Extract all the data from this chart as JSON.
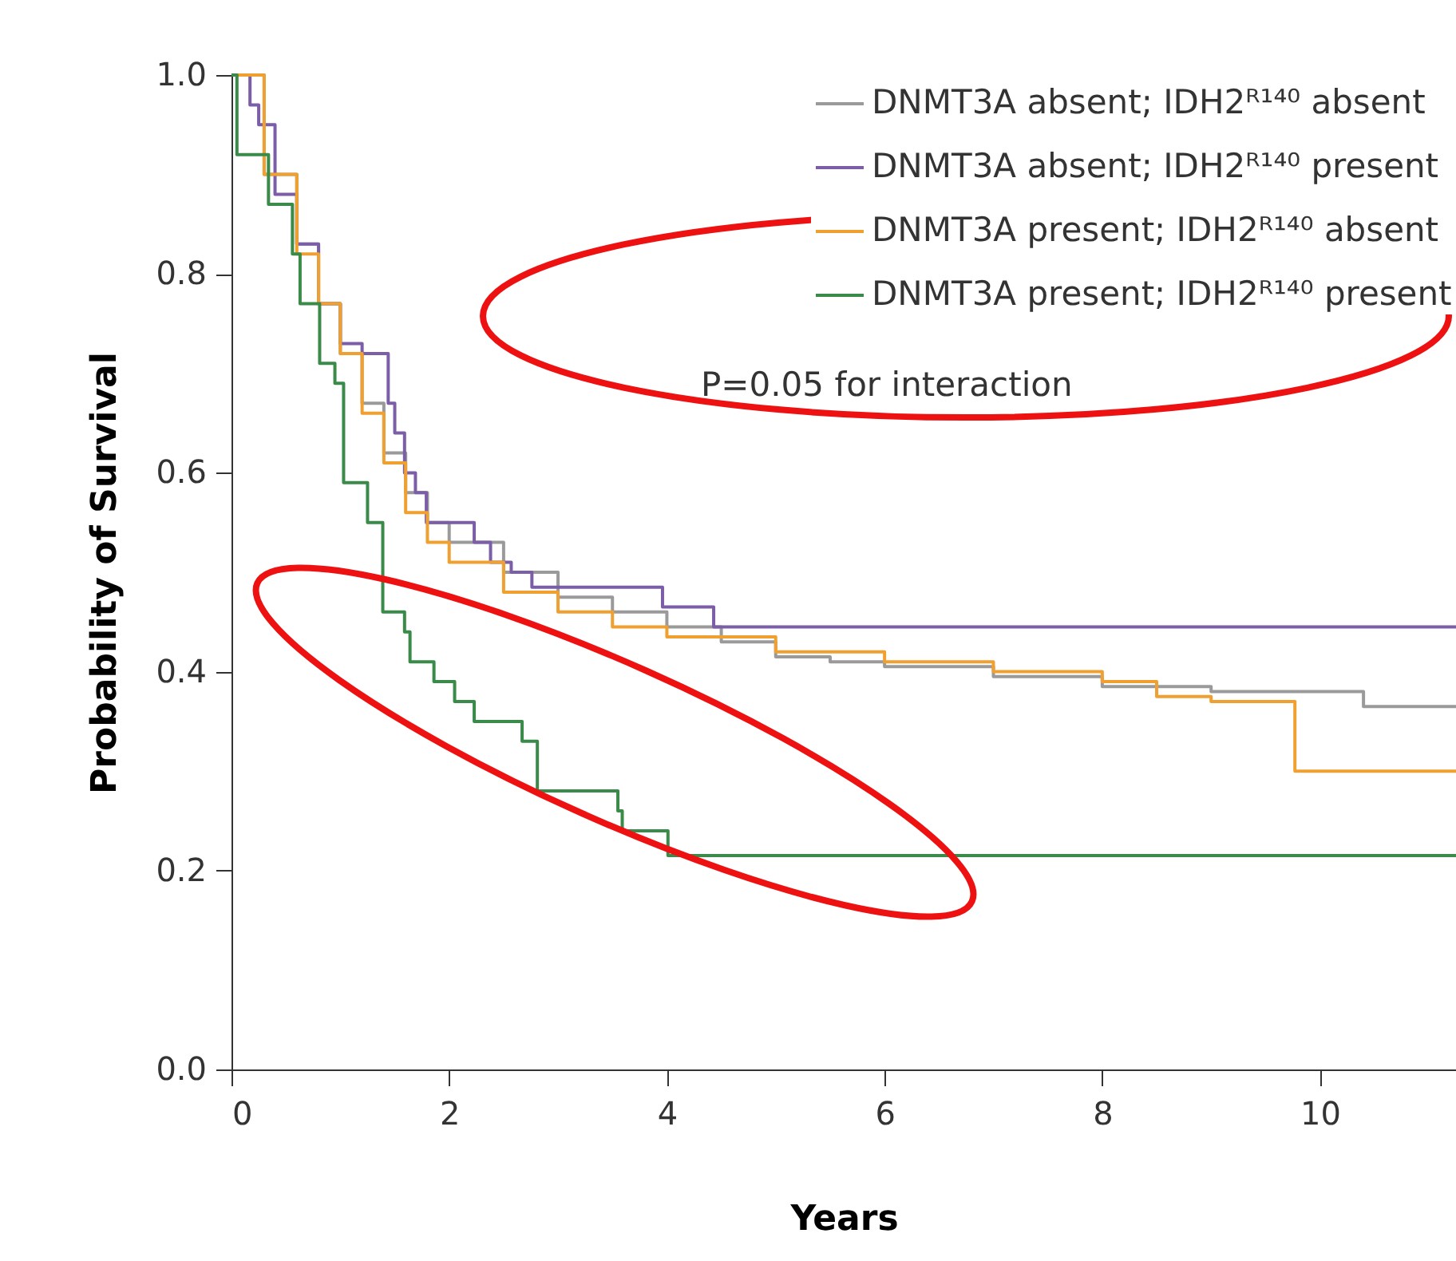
{
  "chart_data": {
    "type": "step",
    "xlabel": "Years",
    "ylabel": "Probability of Survival",
    "xlim": [
      0,
      11.25
    ],
    "xticks": [
      0,
      2,
      4,
      6,
      8,
      10
    ],
    "ylim": [
      0,
      1
    ],
    "yticks": [
      {
        "value": 0,
        "label": "0.0"
      },
      0.2,
      0.4,
      0.6,
      0.8,
      {
        "value": 1,
        "label": "1.0"
      }
    ],
    "legend": "top right",
    "grid": false,
    "line_style": "solid",
    "annotations": [
      "P=0.05 for interaction"
    ],
    "series": [
      {
        "name": "DNMT3A absent; IDH2ᴿ¹⁴⁰ absent",
        "color": "#9a9a9a",
        "x": [
          0,
          0.3,
          0.6,
          0.8,
          1.0,
          1.2,
          1.4,
          1.6,
          1.8,
          2.0,
          2.5,
          3.0,
          3.5,
          4.0,
          4.5,
          5.0,
          5.5,
          6.0,
          7.0,
          8.0,
          9.0,
          10.4,
          11.25
        ],
        "values": [
          1.0,
          0.9,
          0.83,
          0.77,
          0.72,
          0.67,
          0.62,
          0.58,
          0.55,
          0.53,
          0.5,
          0.475,
          0.46,
          0.445,
          0.43,
          0.415,
          0.41,
          0.405,
          0.395,
          0.385,
          0.38,
          0.365,
          0.365
        ]
      },
      {
        "name": "DNMT3A absent; IDH2ᴿ¹⁴⁰ present",
        "color": "#7b5ea7",
        "x": [
          0,
          0.17,
          0.25,
          0.4,
          0.6,
          0.8,
          1.0,
          1.2,
          1.44,
          1.5,
          1.59,
          1.69,
          1.79,
          2.23,
          2.38,
          2.57,
          2.76,
          3.96,
          4.43,
          11.25
        ],
        "values": [
          1.0,
          0.97,
          0.95,
          0.88,
          0.83,
          0.77,
          0.73,
          0.72,
          0.67,
          0.64,
          0.6,
          0.58,
          0.55,
          0.53,
          0.51,
          0.5,
          0.485,
          0.465,
          0.445,
          0.445
        ]
      },
      {
        "name": "DNMT3A present; IDH2ᴿ¹⁴⁰ absent",
        "color": "#f0a030",
        "x": [
          0,
          0.3,
          0.6,
          0.8,
          1.0,
          1.2,
          1.4,
          1.6,
          1.8,
          2.0,
          2.5,
          3.0,
          3.5,
          4.0,
          5.0,
          6.0,
          7.0,
          8.0,
          8.5,
          9.0,
          9.77,
          11.25
        ],
        "values": [
          1.0,
          0.9,
          0.82,
          0.77,
          0.72,
          0.66,
          0.61,
          0.56,
          0.53,
          0.51,
          0.48,
          0.46,
          0.445,
          0.435,
          0.42,
          0.41,
          0.4,
          0.39,
          0.375,
          0.37,
          0.3,
          0.3
        ]
      },
      {
        "name": "DNMT3A present; IDH2ᴿ¹⁴⁰ present",
        "color": "#3a8a4a",
        "x": [
          0,
          0.05,
          0.34,
          0.56,
          0.63,
          0.81,
          0.95,
          1.03,
          1.25,
          1.39,
          1.59,
          1.64,
          1.86,
          2.05,
          2.23,
          2.67,
          2.81,
          3.55,
          3.59,
          4.01,
          11.25
        ],
        "values": [
          1.0,
          0.92,
          0.87,
          0.82,
          0.77,
          0.71,
          0.69,
          0.59,
          0.55,
          0.46,
          0.44,
          0.41,
          0.39,
          0.37,
          0.35,
          0.33,
          0.28,
          0.26,
          0.24,
          0.215,
          0.215
        ]
      }
    ]
  }
}
